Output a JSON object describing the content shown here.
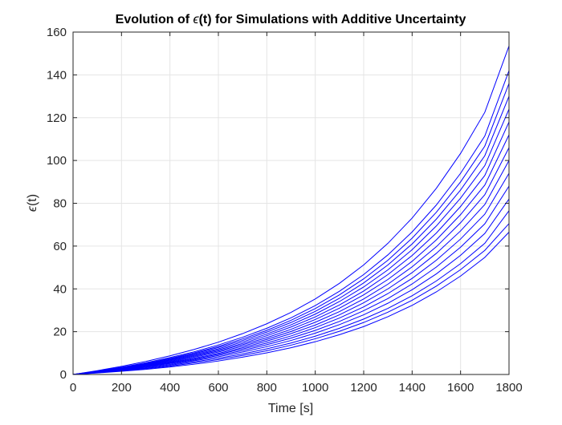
{
  "chart_data": {
    "type": "line",
    "title_pre": "Evolution of ",
    "title_symbol": "ϵ",
    "title_post": "(t) for Simulations with Additive Uncertainty",
    "xlabel": "Time [s]",
    "ylabel_symbol": "ϵ",
    "ylabel_post": "(t)",
    "xlim": [
      0,
      1800
    ],
    "ylim": [
      0,
      160
    ],
    "xticks": [
      0,
      200,
      400,
      600,
      800,
      1000,
      1200,
      1400,
      1600,
      1800
    ],
    "yticks": [
      0,
      20,
      40,
      60,
      80,
      100,
      120,
      140,
      160
    ],
    "grid": true,
    "line_color": "#0000ff",
    "x": [
      0,
      100,
      200,
      300,
      400,
      500,
      600,
      700,
      800,
      900,
      1000,
      1100,
      1200,
      1300,
      1400,
      1500,
      1600,
      1700,
      1800
    ],
    "series": [
      {
        "values": [
          0,
          1.8,
          3.8,
          6.1,
          8.7,
          11.7,
          15.1,
          19.1,
          23.7,
          29.0,
          35.3,
          42.6,
          51.2,
          61.3,
          73.1,
          87.0,
          103.3,
          122.5,
          153.5
        ]
      },
      {
        "values": [
          0,
          1.6,
          3.4,
          5.5,
          7.9,
          10.6,
          13.8,
          17.4,
          21.6,
          26.5,
          32.2,
          38.9,
          46.7,
          55.9,
          66.6,
          79.2,
          94.0,
          111.4,
          142.0
        ]
      },
      {
        "values": [
          0,
          1.5,
          3.2,
          5.2,
          7.5,
          10.1,
          13.1,
          16.6,
          20.6,
          25.3,
          30.8,
          37.2,
          44.7,
          53.4,
          63.7,
          75.8,
          90.0,
          106.7,
          136.0
        ]
      },
      {
        "values": [
          0,
          1.5,
          3.1,
          5.0,
          7.2,
          9.7,
          12.6,
          15.9,
          19.8,
          24.3,
          29.5,
          35.6,
          42.8,
          51.2,
          61.0,
          72.6,
          86.2,
          102.2,
          130.0
        ]
      },
      {
        "values": [
          0,
          1.4,
          3.0,
          4.8,
          6.9,
          9.3,
          12.0,
          15.2,
          18.9,
          23.2,
          28.2,
          34.1,
          40.9,
          48.9,
          58.3,
          69.4,
          82.4,
          97.6,
          124.0
        ]
      },
      {
        "values": [
          0,
          1.3,
          2.9,
          4.6,
          6.6,
          8.9,
          11.5,
          14.5,
          18.1,
          22.2,
          26.9,
          32.5,
          39.0,
          46.7,
          55.6,
          66.1,
          78.5,
          93.0,
          118.0
        ]
      },
      {
        "values": [
          0,
          1.3,
          2.7,
          4.4,
          6.3,
          8.5,
          11.0,
          13.9,
          17.2,
          21.1,
          25.7,
          31.0,
          37.2,
          44.4,
          52.9,
          62.9,
          74.7,
          88.5,
          112.0
        ]
      },
      {
        "values": [
          0,
          1.2,
          2.6,
          4.2,
          6.0,
          8.1,
          10.5,
          13.2,
          16.4,
          20.1,
          24.4,
          29.4,
          35.3,
          42.2,
          50.3,
          59.7,
          70.9,
          84.0,
          106.0
        ]
      },
      {
        "values": [
          0,
          1.2,
          2.5,
          4.0,
          5.7,
          7.6,
          9.9,
          12.5,
          15.6,
          19.1,
          23.1,
          27.9,
          33.5,
          40.0,
          47.6,
          56.6,
          67.1,
          79.4,
          100.0
        ]
      },
      {
        "values": [
          0,
          1.1,
          2.3,
          3.8,
          5.4,
          7.2,
          9.4,
          11.9,
          14.7,
          18.0,
          21.9,
          26.4,
          31.6,
          37.8,
          44.9,
          53.4,
          63.3,
          74.9,
          94.0
        ]
      },
      {
        "values": [
          0,
          1.0,
          2.2,
          3.5,
          5.1,
          6.8,
          8.9,
          11.2,
          13.9,
          17.0,
          20.6,
          24.8,
          29.8,
          35.5,
          42.3,
          50.2,
          59.5,
          70.4,
          88.0
        ]
      },
      {
        "values": [
          0,
          1.0,
          2.0,
          3.3,
          4.7,
          6.4,
          8.3,
          10.5,
          13.0,
          15.9,
          19.3,
          23.3,
          27.9,
          33.3,
          39.6,
          47.0,
          55.7,
          65.9,
          82.0
        ]
      },
      {
        "values": [
          0,
          0.9,
          1.9,
          3.0,
          4.3,
          5.9,
          7.6,
          9.6,
          12.0,
          14.7,
          17.9,
          21.6,
          25.9,
          30.9,
          36.8,
          43.7,
          51.8,
          61.3,
          76.5
        ]
      },
      {
        "values": [
          0,
          0.8,
          1.7,
          2.7,
          3.9,
          5.4,
          7.0,
          8.9,
          11.1,
          13.7,
          16.7,
          20.2,
          24.3,
          29.1,
          34.7,
          41.3,
          49.0,
          58.0,
          70.5
        ]
      },
      {
        "values": [
          0,
          0.7,
          1.5,
          2.4,
          3.5,
          4.8,
          6.3,
          8.1,
          10.1,
          12.5,
          15.3,
          18.6,
          22.4,
          27.0,
          32.3,
          38.6,
          46.0,
          54.7,
          66.5
        ]
      }
    ]
  }
}
